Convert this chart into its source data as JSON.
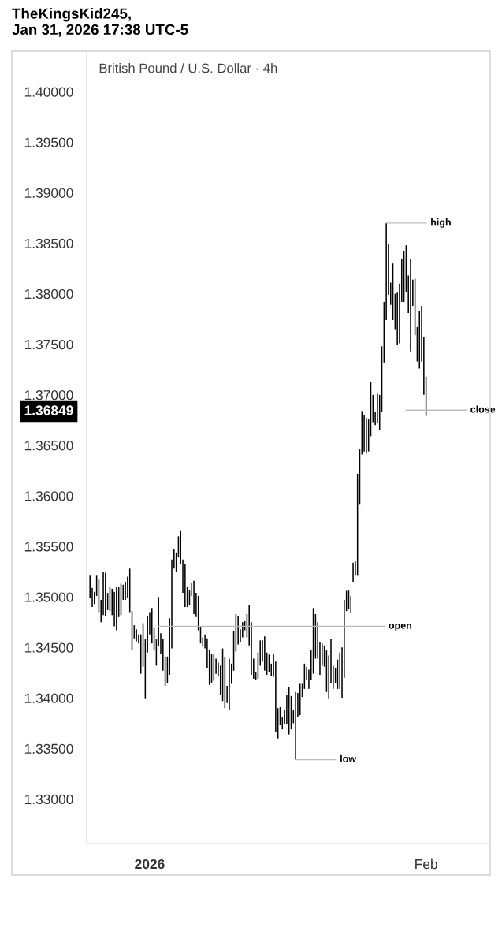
{
  "chart_data": {
    "type": "bar",
    "title": "TheKingsKid245,\nJan 31, 2026 17:38 UTC-5",
    "subtitle": "British Pound / U.S. Dollar · 4h",
    "categories": [
      null,
      null,
      null,
      null,
      null,
      null,
      null,
      null,
      null,
      null,
      null,
      null,
      null,
      null,
      null,
      null,
      null,
      null,
      null,
      null,
      null,
      null,
      null,
      null,
      null,
      null,
      null,
      "2026",
      null,
      null,
      null,
      null,
      null,
      null,
      null,
      null,
      null,
      null,
      null,
      null,
      null,
      null,
      null,
      null,
      null,
      null,
      null,
      null,
      null,
      null,
      null,
      null,
      null,
      null,
      null,
      null,
      null,
      null,
      null,
      null,
      null,
      null,
      null,
      null,
      null,
      null,
      null,
      null,
      null,
      null,
      null,
      null,
      null,
      null,
      null,
      null,
      null,
      null,
      null,
      null,
      null,
      null,
      null,
      null,
      null,
      null,
      null,
      null,
      null,
      null,
      null,
      null,
      null,
      null,
      null,
      null,
      null,
      null,
      null,
      null,
      null,
      null,
      null,
      null,
      null,
      null,
      null,
      null,
      null,
      null,
      null,
      null,
      null,
      null,
      null,
      null,
      null,
      null,
      null,
      null,
      null,
      null,
      null,
      null,
      null,
      null,
      null,
      null,
      null,
      null,
      null,
      null,
      null,
      null,
      null,
      null,
      null,
      null,
      null,
      null,
      null,
      null,
      null,
      null,
      null,
      null,
      null,
      null,
      null,
      null,
      null,
      null,
      "Feb"
    ],
    "base": [
      1.3499,
      1.349,
      1.3493,
      1.3501,
      1.3485,
      1.3475,
      1.3482,
      1.3481,
      1.3487,
      1.3486,
      1.3482,
      1.3471,
      1.3467,
      1.348,
      1.3482,
      1.3497,
      1.3497,
      1.3499,
      1.3485,
      1.3447,
      1.3459,
      1.3456,
      1.3454,
      1.3424,
      1.3431,
      1.3399,
      1.3445,
      1.3463,
      1.3454,
      1.3447,
      1.3432,
      1.3451,
      1.3444,
      1.3427,
      1.3412,
      1.3415,
      1.3423,
      1.3449,
      1.3528,
      1.3525,
      1.3539,
      1.3533,
      1.3504,
      1.349,
      1.349,
      1.3492,
      1.3501,
      1.3483,
      1.348,
      1.3467,
      1.3454,
      1.3451,
      1.3449,
      1.343,
      1.3413,
      1.3415,
      1.3417,
      1.3424,
      1.3422,
      1.3403,
      1.3397,
      1.339,
      1.3395,
      1.3388,
      1.3414,
      1.3427,
      1.3446,
      1.3453,
      1.3455,
      1.346,
      1.3467,
      1.346,
      1.3452,
      1.3423,
      1.3419,
      1.3418,
      1.3419,
      1.3432,
      1.3436,
      1.3427,
      1.3423,
      1.3426,
      1.3422,
      1.3421,
      1.3366,
      1.336,
      1.3373,
      1.3369,
      1.3374,
      1.3374,
      1.3364,
      1.3369,
      1.3375,
      1.3339,
      1.3381,
      1.3383,
      1.3401,
      1.3409,
      1.3418,
      1.3409,
      1.3418,
      1.3424,
      1.3439,
      1.3439,
      1.3423,
      1.3432,
      1.3431,
      1.3406,
      1.3399,
      1.3415,
      1.3409,
      1.3415,
      1.3409,
      1.3409,
      1.34,
      1.342,
      1.3486,
      1.3488,
      1.3484,
      1.3515,
      1.3521,
      1.3521,
      1.3592,
      1.3641,
      1.3644,
      1.3642,
      1.3644,
      1.3659,
      1.3673,
      1.367,
      1.3672,
      1.3665,
      1.3683,
      1.3732,
      1.3774,
      1.3799,
      1.3789,
      1.3774,
      1.3765,
      1.3749,
      1.3751,
      1.3792,
      1.3792,
      1.3802,
      1.3781,
      1.3743,
      1.3788,
      1.3759,
      1.3733,
      1.3726,
      1.3733,
      1.37,
      1.3679
    ],
    "values": [
      0.0022,
      0.0019,
      0.0012,
      0.002,
      0.0032,
      0.0022,
      0.0043,
      0.0043,
      0.0017,
      0.0024,
      0.0026,
      0.0034,
      0.0043,
      0.003,
      0.0031,
      0.0015,
      0.0018,
      0.0021,
      0.0043,
      0.0039,
      0.0013,
      0.0012,
      0.0009,
      0.0039,
      0.0043,
      0.0059,
      0.0036,
      0.0022,
      0.0035,
      0.0022,
      0.0026,
      0.0049,
      0.002,
      0.0031,
      0.0029,
      0.0026,
      0.0056,
      0.0088,
      0.0019,
      0.0019,
      0.0021,
      0.0033,
      0.0033,
      0.0043,
      0.002,
      0.0015,
      0.0013,
      0.0033,
      0.0024,
      0.0034,
      0.0017,
      0.0009,
      0.0014,
      0.0029,
      0.0035,
      0.0029,
      0.0026,
      0.0015,
      0.0013,
      0.0029,
      0.0052,
      0.0051,
      0.0017,
      0.0051,
      0.002,
      0.0039,
      0.0037,
      0.0028,
      0.0013,
      0.0015,
      0.0009,
      0.0023,
      0.004,
      0.0052,
      0.002,
      0.0008,
      0.0026,
      0.0025,
      0.0021,
      0.0034,
      0.0022,
      0.0017,
      0.0012,
      0.0022,
      0.007,
      0.003,
      0.0018,
      0.0012,
      0.0014,
      0.0029,
      0.0047,
      0.0033,
      0.0013,
      0.0067,
      0.0024,
      0.0031,
      0.0013,
      0.0025,
      0.0013,
      0.0019,
      0.0029,
      0.0065,
      0.0044,
      0.0036,
      0.0032,
      0.0022,
      0.0021,
      0.0041,
      0.0043,
      0.0043,
      0.0023,
      0.0015,
      0.0029,
      0.0036,
      0.005,
      0.0077,
      0.002,
      0.0019,
      0.0017,
      0.0019,
      0.0015,
      0.0101,
      0.0054,
      0.0043,
      0.0036,
      0.0035,
      0.0032,
      0.0054,
      0.0027,
      0.0013,
      0.0029,
      0.0035,
      0.0065,
      0.006,
      0.0096,
      0.005,
      0.0022,
      0.0056,
      0.0035,
      0.0052,
      0.0059,
      0.0042,
      0.005,
      0.0046,
      0.0037,
      0.0091,
      0.0026,
      0.0056,
      0.0034,
      0.0057,
      0.0055,
      0.0057,
      0.0039
    ],
    "color": "#000000",
    "ylim": [
      1.3256,
      1.404
    ],
    "yticks": [
      {
        "value": 1.33,
        "label": "1.33000"
      },
      {
        "value": 1.335,
        "label": "1.33500"
      },
      {
        "value": 1.34,
        "label": "1.34000"
      },
      {
        "value": 1.345,
        "label": "1.34500"
      },
      {
        "value": 1.35,
        "label": "1.35000"
      },
      {
        "value": 1.355,
        "label": "1.35500"
      },
      {
        "value": 1.36,
        "label": "1.36000"
      },
      {
        "value": 1.365,
        "label": "1.36500"
      },
      {
        "value": 1.37,
        "label": "1.37000"
      },
      {
        "value": 1.375,
        "label": "1.37500"
      },
      {
        "value": 1.38,
        "label": "1.38000"
      },
      {
        "value": 1.385,
        "label": "1.38500"
      },
      {
        "value": 1.39,
        "label": "1.39000"
      },
      {
        "value": 1.395,
        "label": "1.39500"
      },
      {
        "value": 1.4,
        "label": "1.40000"
      },
      {
        "value": 1.36849,
        "label": "1.36849"
      }
    ],
    "ref_lines": [
      {
        "axis": "y",
        "value": 1.387,
        "label": "high",
        "color": "#bbbbbb"
      },
      {
        "axis": "y",
        "value": 1.36849,
        "label": "close",
        "color": "#bbbbbb"
      },
      {
        "axis": "y",
        "value": 1.3471,
        "label": "open",
        "color": "#bbbbbb"
      },
      {
        "axis": "y",
        "value": 1.3339,
        "label": "low",
        "color": "#bbbbbb"
      }
    ],
    "grid": false
  }
}
